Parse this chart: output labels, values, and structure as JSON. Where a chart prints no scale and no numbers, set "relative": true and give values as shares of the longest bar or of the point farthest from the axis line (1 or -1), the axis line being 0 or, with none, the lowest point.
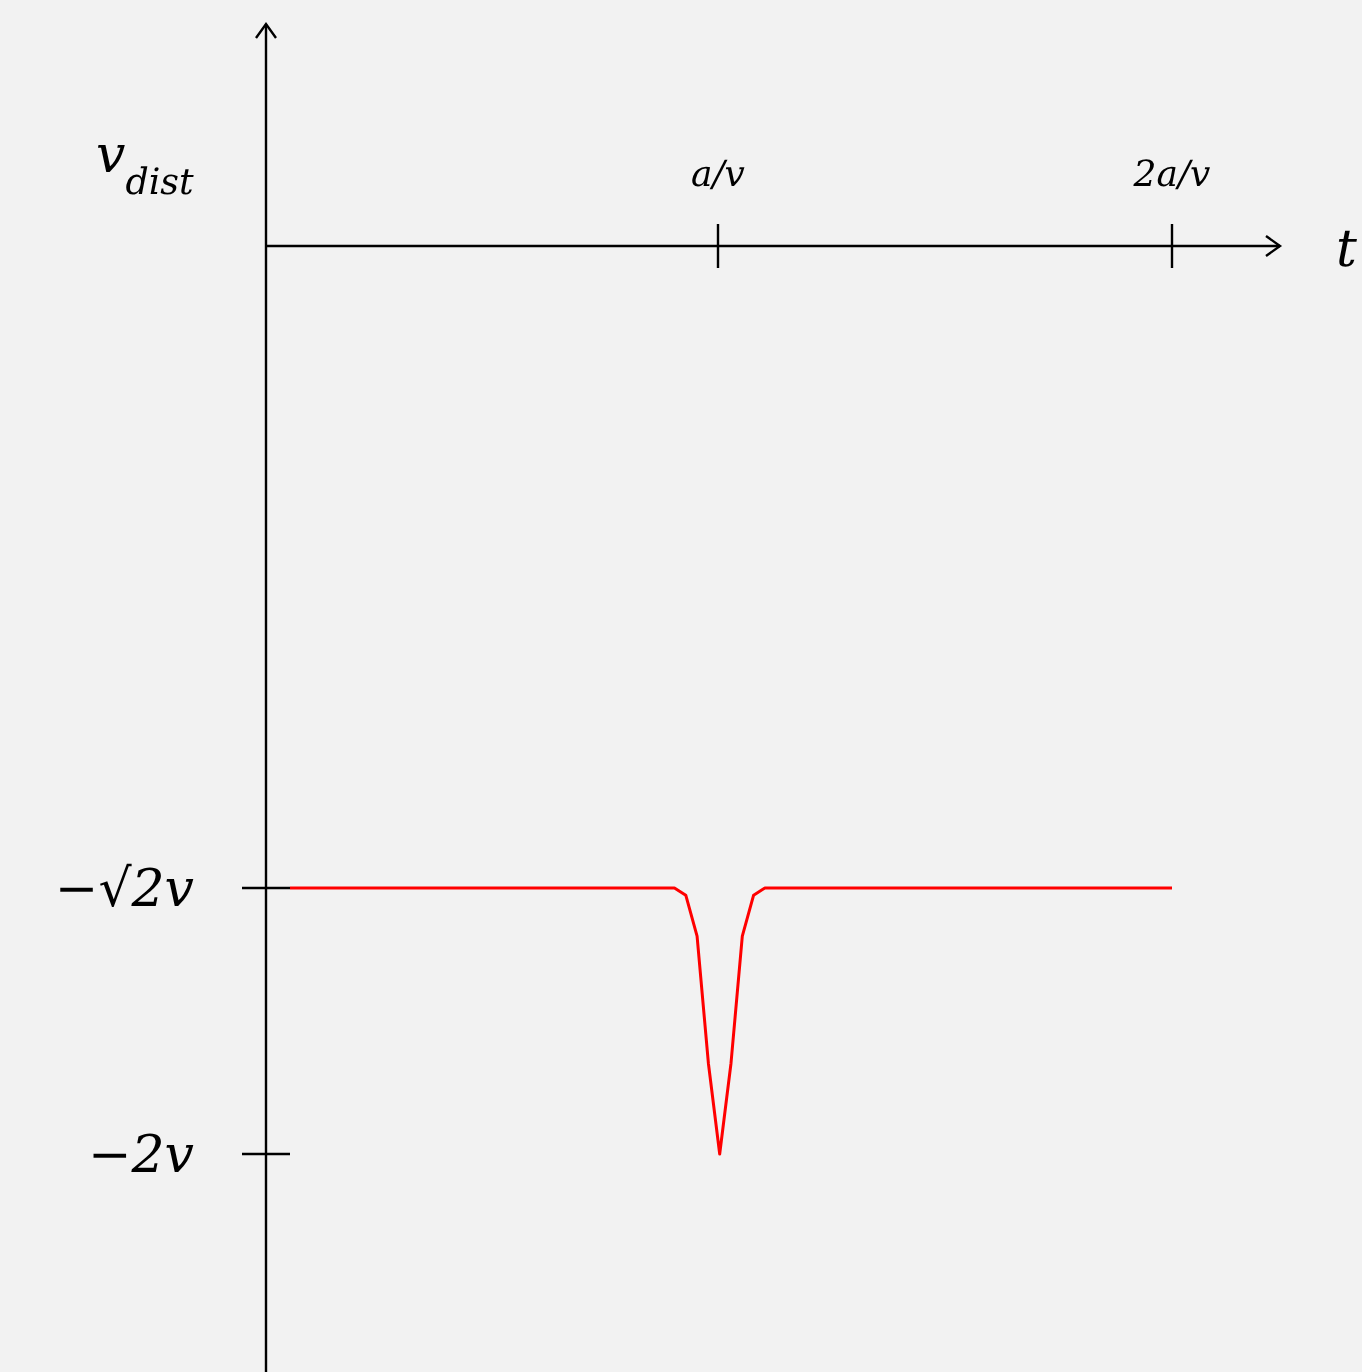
{
  "chart_data": {
    "type": "line",
    "xlabel": "t",
    "ylabel": "v$_{dist}$",
    "relative": true,
    "categories": [
      null,
      null,
      null,
      null,
      null,
      null,
      null,
      null,
      null,
      null,
      null,
      null,
      null,
      null,
      null,
      null,
      null,
      null,
      null,
      null,
      null,
      null,
      null,
      null,
      null,
      null,
      null,
      null,
      null,
      null,
      null,
      null,
      null,
      null,
      null,
      null,
      null,
      null,
      null,
      null,
      null,
      null,
      null,
      null,
      null,
      null,
      null,
      null,
      null,
      null,
      null,
      null,
      null,
      null,
      null,
      null,
      null,
      null,
      null,
      null,
      null,
      null,
      null,
      null,
      null,
      null,
      null,
      null,
      null,
      null,
      null,
      null,
      null,
      null,
      null,
      null,
      null,
      null,
      null
    ],
    "annotations": [
      "a/v",
      "2a/v",
      "−√2v",
      "−2v"
    ],
    "grid": false,
    "marker": "none",
    "line_style": "solid",
    "series": [
      {
        "color": "#ff0000",
        "values": [
          -0.707,
          -0.707,
          -0.707,
          -0.707,
          -0.707,
          -0.707,
          -0.707,
          -0.707,
          -0.707,
          -0.707,
          -0.707,
          -0.707,
          -0.707,
          -0.707,
          -0.707,
          -0.707,
          -0.707,
          -0.707,
          -0.707,
          -0.707,
          -0.707,
          -0.707,
          -0.707,
          -0.707,
          -0.707,
          -0.707,
          -0.707,
          -0.707,
          -0.707,
          -0.707,
          -0.707,
          -0.707,
          -0.707,
          -0.707,
          -0.707,
          -0.715,
          -0.76,
          -0.9,
          -1,
          -0.9,
          -0.76,
          -0.715,
          -0.707,
          -0.707,
          -0.707,
          -0.707,
          -0.707,
          -0.707,
          -0.707,
          -0.707,
          -0.707,
          -0.707,
          -0.707,
          -0.707,
          -0.707,
          -0.707,
          -0.707,
          -0.707,
          -0.707,
          -0.707,
          -0.707,
          -0.707,
          -0.707,
          -0.707,
          -0.707,
          -0.707,
          -0.707,
          -0.707,
          -0.707,
          -0.707,
          -0.707,
          -0.707,
          -0.707,
          -0.707,
          -0.707,
          -0.707,
          -0.707,
          -0.707,
          -0.707
        ]
      }
    ]
  }
}
